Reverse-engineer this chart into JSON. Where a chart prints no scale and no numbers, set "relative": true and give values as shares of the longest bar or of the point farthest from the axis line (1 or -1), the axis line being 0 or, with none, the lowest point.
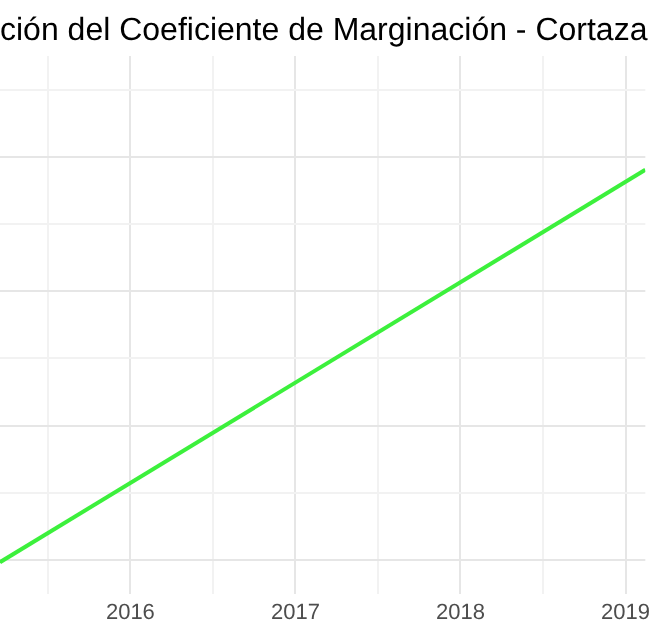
{
  "chart_data": {
    "type": "line",
    "title": "ción del Coeficiente de Marginación - Cortaza",
    "relative": true,
    "x": [
      2015.21,
      2019.12
    ],
    "series": [
      {
        "color": "#3cf03c",
        "values": [
          0,
          1
        ]
      }
    ],
    "xlim": [
      2015.21,
      2019.12
    ],
    "xticks": [
      {
        "value": 2015.5,
        "label": null
      },
      2016,
      {
        "value": 2016.5,
        "label": null
      },
      2017,
      {
        "value": 2017.5,
        "label": null
      },
      2018,
      {
        "value": 2018.5,
        "label": null
      },
      2019
    ],
    "grid": true,
    "tick_labels": "x",
    "marker": "none",
    "line_style": "solid"
  }
}
